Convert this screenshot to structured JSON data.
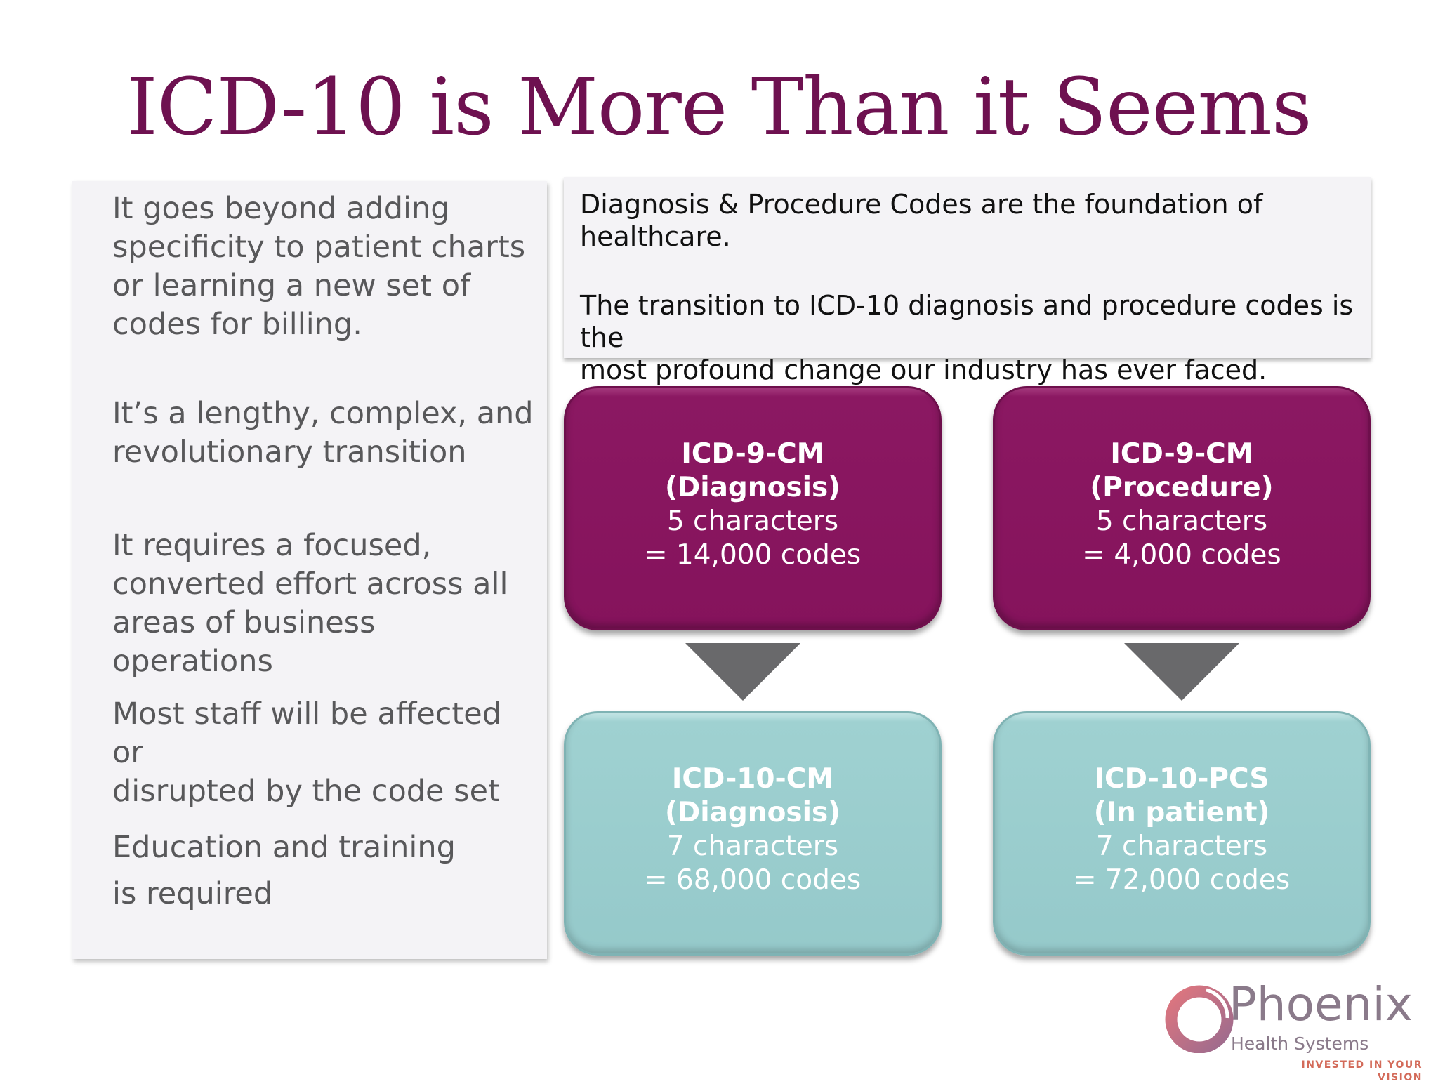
{
  "slide": {
    "title": "ICD-10 is More Than it Seems",
    "bullets": [
      [
        "It goes beyond adding",
        "specificity to patient charts",
        "or learning a new set of",
        "codes for billing."
      ],
      [
        "It’s a lengthy, complex, and",
        "revolutionary transition"
      ],
      [
        "It requires a focused,",
        "converted effort across all",
        "areas of business operations"
      ],
      [
        "Most staff will be affected or",
        "disrupted by the code set"
      ],
      [
        "Education and training",
        "is required"
      ]
    ],
    "intro": {
      "p1": [
        "Diagnosis & Procedure Codes are the foundation of",
        "healthcare."
      ],
      "p2": [
        "The transition to ICD-10 diagnosis and procedure codes is the",
        "most profound change our industry has ever faced."
      ]
    },
    "boxes": {
      "icd9_diag": {
        "lines": [
          "ICD-9-CM",
          "(Diagnosis)",
          "5 characters",
          "= 14,000 codes"
        ]
      },
      "icd9_proc": {
        "lines": [
          "ICD-9-CM",
          "(Procedure)",
          "5 characters",
          "= 4,000 codes"
        ]
      },
      "icd10_diag": {
        "lines": [
          "ICD-10-CM",
          "(Diagnosis)",
          "7 characters",
          "= 68,000 codes"
        ]
      },
      "icd10_pcs": {
        "lines": [
          "ICD-10-PCS",
          "(In patient)",
          "7 characters",
          "= 72,000 codes"
        ]
      }
    },
    "colors": {
      "title": "#6e1150",
      "old_box": "#85135c",
      "new_box": "#95c9ca",
      "arrow": "#69696b",
      "panel": "#f4f3f6"
    },
    "logo": {
      "icon": "phoenix-ring-logo",
      "name": "Phoenix",
      "sub": "Health Systems",
      "tagline": "INVESTED IN YOUR VISION"
    }
  }
}
